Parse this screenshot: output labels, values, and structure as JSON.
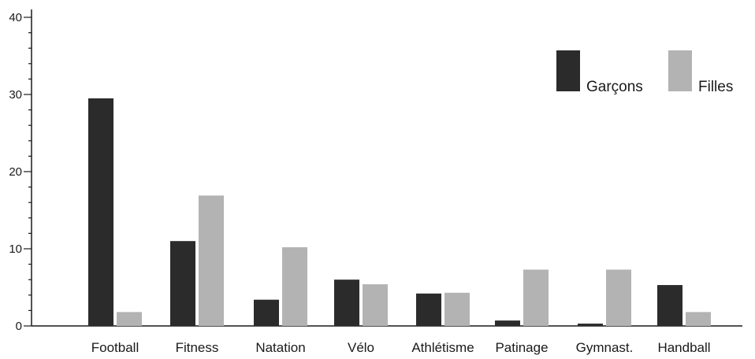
{
  "chart_data": {
    "type": "bar",
    "title": "",
    "xlabel": "",
    "ylabel": "",
    "ylim": [
      0,
      40
    ],
    "yticks": [
      0,
      10,
      20,
      30,
      40
    ],
    "grid": false,
    "legend_position": "top-right",
    "categories": [
      "Football",
      "Fitness",
      "Natation",
      "Vélo",
      "Athlétisme",
      "Patinage",
      "Gymnast.",
      "Handball"
    ],
    "series": [
      {
        "name": "Garçons",
        "color": "#2b2b2b",
        "values": [
          29.5,
          11.0,
          3.4,
          6.0,
          4.2,
          0.7,
          0.3,
          5.3
        ]
      },
      {
        "name": "Filles",
        "color": "#b3b3b3",
        "values": [
          1.8,
          16.9,
          10.2,
          5.4,
          4.3,
          7.3,
          7.3,
          1.8
        ]
      }
    ]
  }
}
